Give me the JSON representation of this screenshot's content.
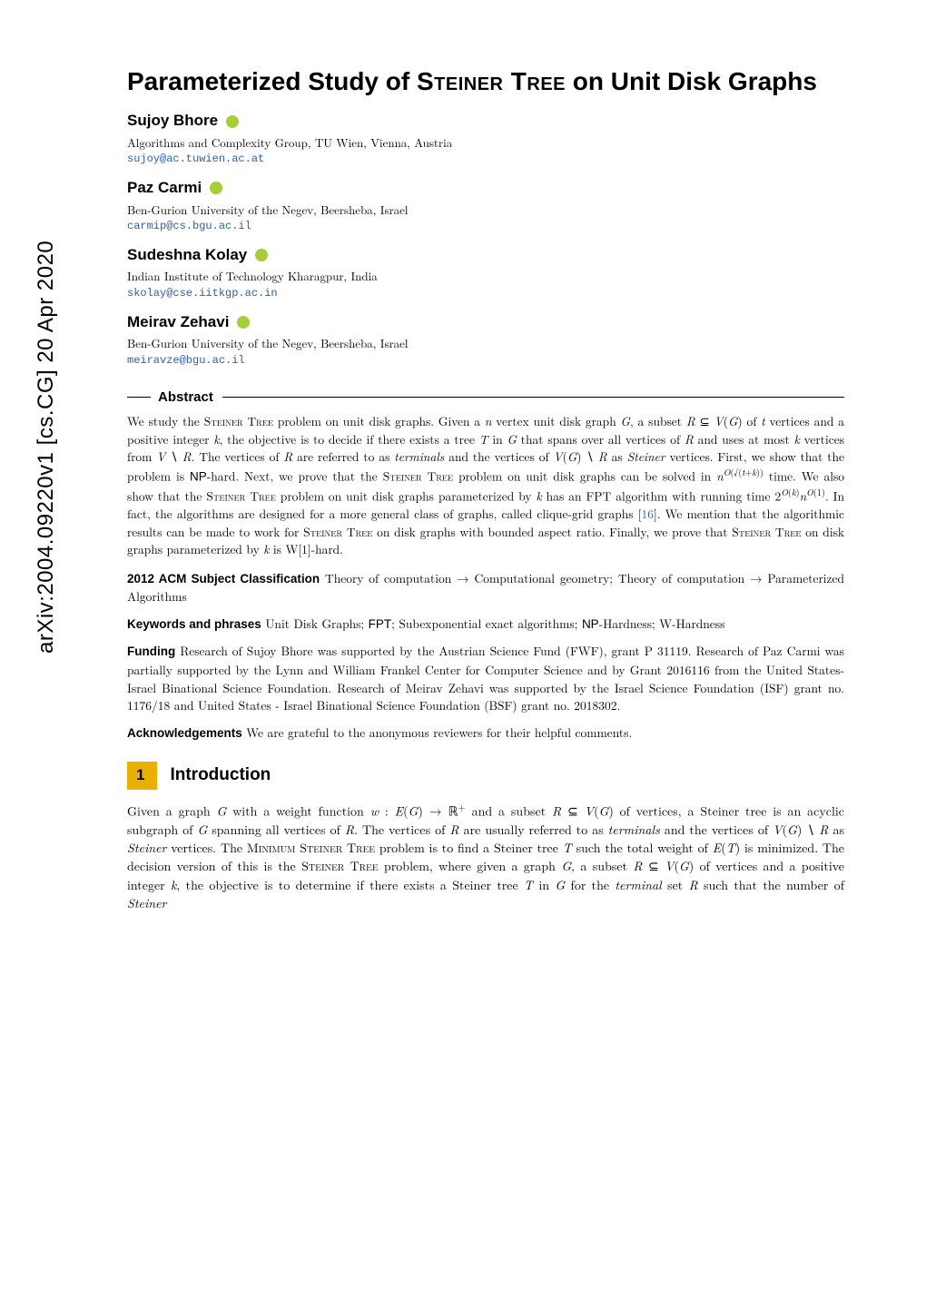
{
  "arxiv_stamp": "arXiv:2004.09220v1  [cs.CG]  20 Apr 2020",
  "title_prefix": "Parameterized Study of ",
  "title_sc": "Steiner Tree",
  "title_suffix": " on Unit Disk Graphs",
  "authors": [
    {
      "name": "Sujoy Bhore",
      "affil": "Algorithms and Complexity Group, TU Wien, Vienna, Austria",
      "email": "sujoy@ac.tuwien.ac.at"
    },
    {
      "name": "Paz Carmi",
      "affil": "Ben-Gurion University of the Negev, Beersheba, Israel",
      "email": "carmip@cs.bgu.ac.il"
    },
    {
      "name": "Sudeshna Kolay",
      "affil": "Indian Institute of Technology Kharagpur, India",
      "email": "skolay@cse.iitkgp.ac.in"
    },
    {
      "name": "Meirav Zehavi",
      "affil": "Ben-Gurion University of the Negev, Beersheba, Israel",
      "email": "meiravze@bgu.ac.il"
    }
  ],
  "abstract_label": "Abstract",
  "abstract_html": "We study the <span class='sc'>Steiner Tree</span> problem on unit disk graphs. Given a <i>n</i> vertex unit disk graph <i>G</i>, a subset <i>R</i> ⊆ <i>V</i>(<i>G</i>) of <i>t</i> vertices and a positive integer <i>k</i>, the objective is to decide if there exists a tree <i>T</i> in <i>G</i> that spans over all vertices of <i>R</i> and uses at most <i>k</i> vertices from <i>V</i> ∖ <i>R</i>. The vertices of <i>R</i> are referred to as <i>terminals</i> and the vertices of <i>V</i>(<i>G</i>) ∖ <i>R</i> as <i>Steiner</i> vertices. First, we show that the problem is <span class='sf'>NP</span>-hard. Next, we prove that the <span class='sc'>Steiner Tree</span> problem on unit disk graphs can be solved in <i>n</i><sup><i>O</i>(√(<i>t</i>+<i>k</i>))</sup> time. We also show that the <span class='sc'>Steiner Tree</span> problem on unit disk graphs parameterized by <i>k</i> has an FPT algorithm with running time 2<sup><i>O</i>(<i>k</i>)</sup><i>n</i><sup><i>O</i>(1)</sup>. In fact, the algorithms are designed for a more general class of graphs, called clique-grid graphs [<span class='cite'>16</span>]. We mention that the algorithmic results can be made to work for <span class='sc'>Steiner Tree</span> on disk graphs with bounded aspect ratio. Finally, we prove that <span class='sc'>Steiner Tree</span> on disk graphs parameterized by <i>k</i> is W[1]-hard.",
  "acm_label": "2012 ACM Subject Classification",
  "acm_text": "Theory of computation → Computational geometry; Theory of computation → Parameterized Algorithms",
  "keywords_label": "Keywords and phrases",
  "keywords_text": "Unit Disk Graphs; FPT; Subexponential exact algorithms; NP-Hardness; W-Hardness",
  "funding_label": "Funding",
  "funding_text": "Research of Sujoy Bhore was supported by the Austrian Science Fund (FWF), grant P 31119. Research of Paz Carmi was partially supported by the Lynn and William Frankel Center for Computer Science and by Grant 2016116 from the United States-Israel Binational Science Foundation. Research of Meirav Zehavi was supported by the Israel Science Foundation (ISF) grant no. 1176/18 and United States - Israel Binational Science Foundation (BSF) grant no. 2018302.",
  "ack_label": "Acknowledgements",
  "ack_text": "We are grateful to the anonymous reviewers for their helpful comments.",
  "section_num": "1",
  "section_title": "Introduction",
  "intro_html": "Given a graph <i>G</i> with a weight function <i>w</i> : <i>E</i>(<i>G</i>) → ℝ<sup>+</sup> and a subset <i>R</i> ⊆ <i>V</i>(<i>G</i>) of vertices, a Steiner tree is an acyclic subgraph of <i>G</i> spanning all vertices of <i>R</i>. The vertices of <i>R</i> are usually referred to as <i>terminals</i> and the vertices of <i>V</i>(<i>G</i>) ∖ <i>R</i> as <i>Steiner</i> vertices. The <span class='sc'>Minimum Steiner Tree</span> problem is to find a Steiner tree <i>T</i> such the total weight of <i>E</i>(<i>T</i>) is minimized. The decision version of this is the <span class='sc'>Steiner Tree</span> problem, where given a graph <i>G</i>, a subset <i>R</i> ⊆ <i>V</i>(<i>G</i>) of vertices and a positive integer <i>k</i>, the objective is to determine if there exists a Steiner tree <i>T</i> in <i>G</i> for the <i>terminal</i> set <i>R</i> such that the number of <i>Steiner</i>",
  "colors": {
    "accent": "#eab000",
    "link": "#3060a8",
    "cite": "#2a6496",
    "orcid": "#a6ce39"
  }
}
